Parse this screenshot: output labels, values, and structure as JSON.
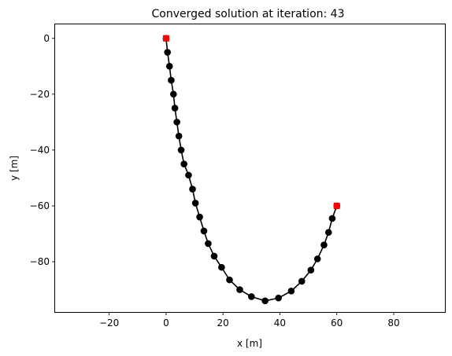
{
  "chart_data": {
    "type": "line",
    "title": "Converged solution at iteration: 43",
    "xlabel": "x [m]",
    "ylabel": "y [m]",
    "xlim": [
      -39,
      98
    ],
    "ylim": [
      -98,
      5
    ],
    "xticks": [
      -20,
      0,
      20,
      40,
      60,
      80
    ],
    "yticks": [
      0,
      -20,
      -40,
      -60,
      -80
    ],
    "grid": false,
    "series": [
      {
        "line_color": "#000000",
        "marker_color": "#000000",
        "marker": "circle",
        "points": [
          [
            0,
            0
          ],
          [
            0.5,
            -5.0
          ],
          [
            1.2,
            -10.0
          ],
          [
            1.8,
            -15.0
          ],
          [
            2.6,
            -20.0
          ],
          [
            3.1,
            -25.0
          ],
          [
            3.8,
            -30.0
          ],
          [
            4.5,
            -35.0
          ],
          [
            5.3,
            -40.0
          ],
          [
            6.3,
            -45.0
          ],
          [
            7.9,
            -49.0
          ],
          [
            9.3,
            -54.0
          ],
          [
            10.3,
            -59.0
          ],
          [
            11.8,
            -64.0
          ],
          [
            13.3,
            -69.0
          ],
          [
            14.8,
            -73.5
          ],
          [
            16.9,
            -78.0
          ],
          [
            19.5,
            -82.0
          ],
          [
            22.3,
            -86.5
          ],
          [
            25.9,
            -90.0
          ],
          [
            30.0,
            -92.5
          ],
          [
            34.8,
            -94.0
          ],
          [
            39.5,
            -93.0
          ],
          [
            44.0,
            -90.5
          ],
          [
            47.7,
            -87.0
          ],
          [
            50.9,
            -83.0
          ],
          [
            53.2,
            -79.0
          ],
          [
            55.5,
            -74.0
          ],
          [
            57.1,
            -69.5
          ],
          [
            58.4,
            -64.5
          ],
          [
            60.0,
            -60.0
          ]
        ]
      }
    ],
    "endpoints": {
      "color": "#ff0000",
      "marker": "square",
      "points": [
        [
          0,
          0
        ],
        [
          60,
          -60
        ]
      ]
    }
  }
}
